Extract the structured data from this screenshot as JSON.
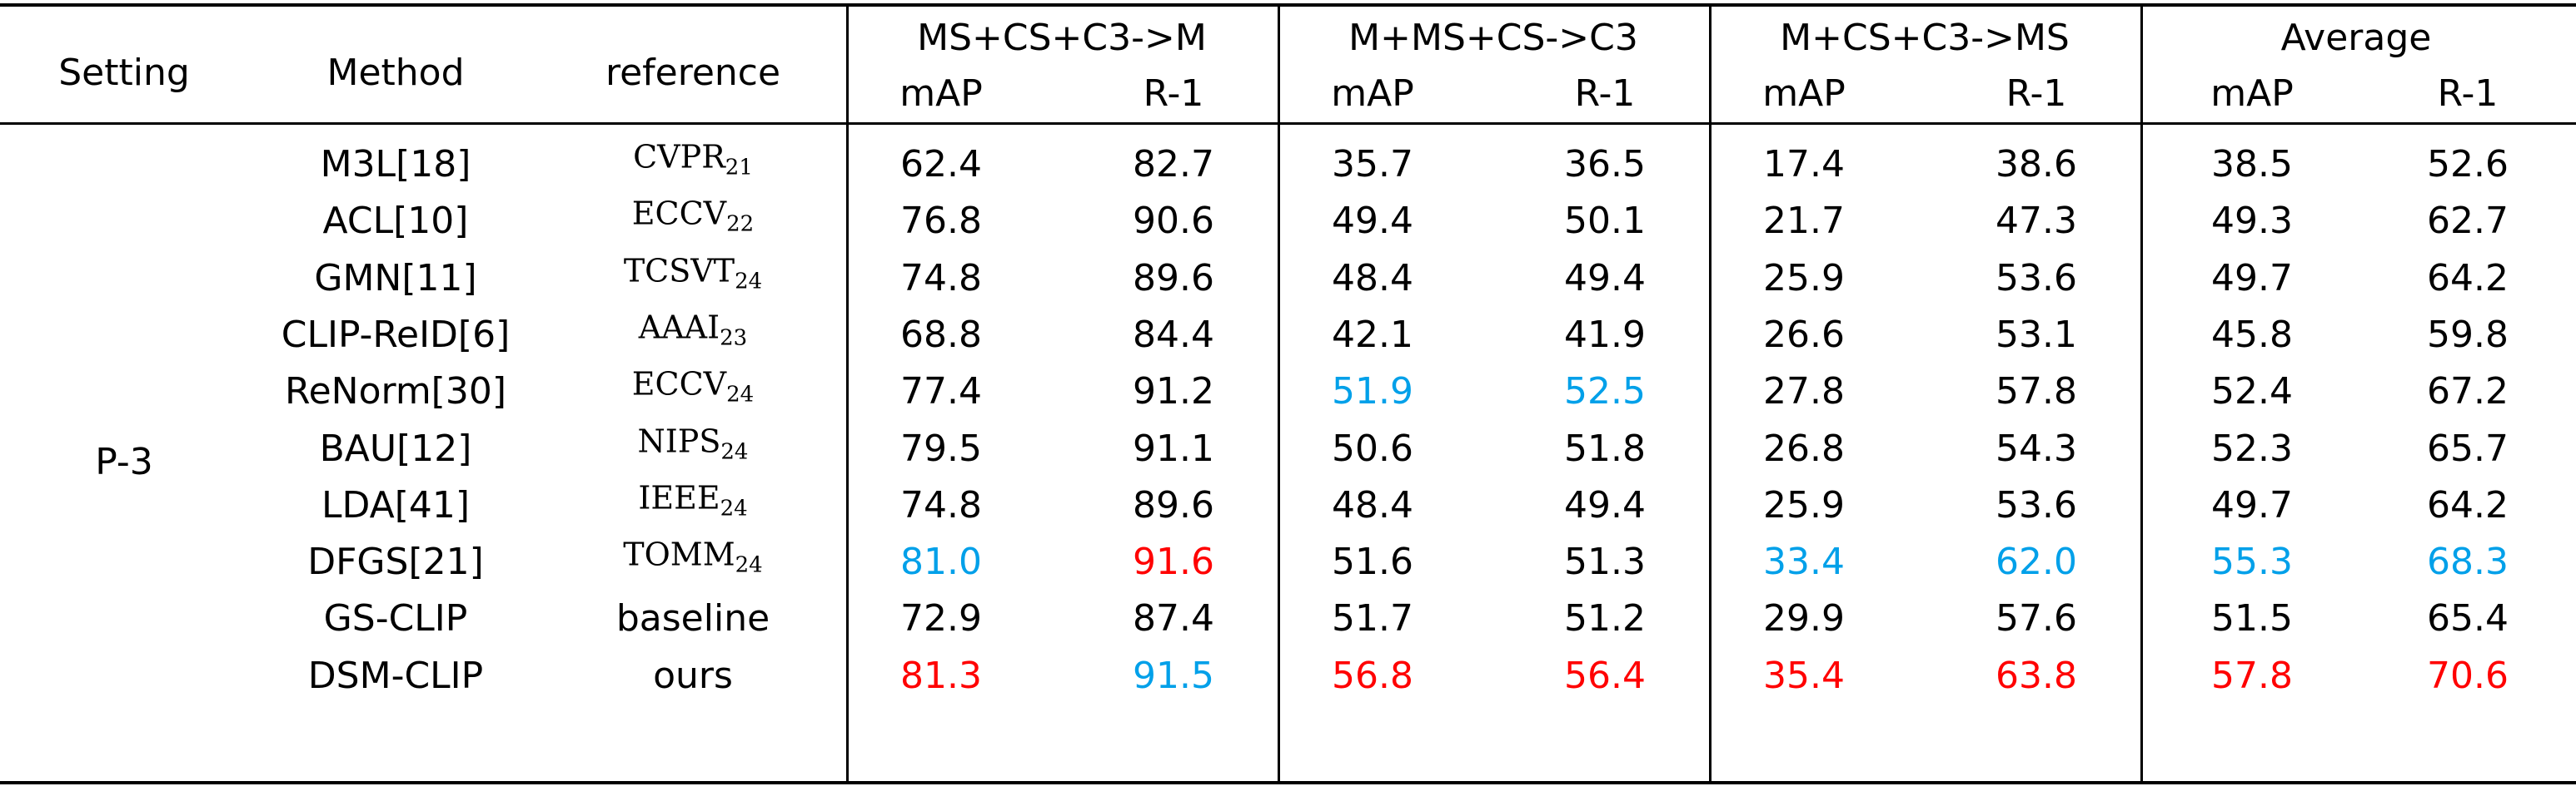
{
  "table": {
    "headers": {
      "setting": "Setting",
      "method": "Method",
      "reference": "reference",
      "groups": [
        "MS+CS+C3->M",
        "M+MS+CS->C3",
        "M+CS+C3->MS",
        "Average"
      ],
      "sub": [
        "mAP",
        "R-1",
        "mAP",
        "R-1",
        "mAP",
        "R-1",
        "mAP",
        "R-1"
      ]
    },
    "setting_value": "P-3",
    "rows": [
      {
        "method": "M3L[18]",
        "ref": "CVPR",
        "ref_sub": "21",
        "values": [
          "62.4",
          "82.7",
          "35.7",
          "36.5",
          "17.4",
          "38.6",
          "38.5",
          "52.6"
        ],
        "colors": [
          "",
          "",
          "",
          "",
          "",
          "",
          "",
          ""
        ]
      },
      {
        "method": "ACL[10]",
        "ref": "ECCV",
        "ref_sub": "22",
        "values": [
          "76.8",
          "90.6",
          "49.4",
          "50.1",
          "21.7",
          "47.3",
          "49.3",
          "62.7"
        ],
        "colors": [
          "",
          "",
          "",
          "",
          "",
          "",
          "",
          ""
        ]
      },
      {
        "method": "GMN[11]",
        "ref": "TCSVT",
        "ref_sub": "24",
        "values": [
          "74.8",
          "89.6",
          "48.4",
          "49.4",
          "25.9",
          "53.6",
          "49.7",
          "64.2"
        ],
        "colors": [
          "",
          "",
          "",
          "",
          "",
          "",
          "",
          ""
        ]
      },
      {
        "method": "CLIP-ReID[6]",
        "ref": "AAAI",
        "ref_sub": "23",
        "values": [
          "68.8",
          "84.4",
          "42.1",
          "41.9",
          "26.6",
          "53.1",
          "45.8",
          "59.8"
        ],
        "colors": [
          "",
          "",
          "",
          "",
          "",
          "",
          "",
          ""
        ]
      },
      {
        "method": "ReNorm[30]",
        "ref": "ECCV",
        "ref_sub": "24",
        "values": [
          "77.4",
          "91.2",
          "51.9",
          "52.5",
          "27.8",
          "57.8",
          "52.4",
          "67.2"
        ],
        "colors": [
          "",
          "",
          "blue",
          "blue",
          "",
          "",
          "",
          ""
        ]
      },
      {
        "method": "BAU[12]",
        "ref": "NIPS",
        "ref_sub": "24",
        "values": [
          "79.5",
          "91.1",
          "50.6",
          "51.8",
          "26.8",
          "54.3",
          "52.3",
          "65.7"
        ],
        "colors": [
          "",
          "",
          "",
          "",
          "",
          "",
          "",
          ""
        ]
      },
      {
        "method": "LDA[41]",
        "ref": "IEEE",
        "ref_sub": "24",
        "values": [
          "74.8",
          "89.6",
          "48.4",
          "49.4",
          "25.9",
          "53.6",
          "49.7",
          "64.2"
        ],
        "colors": [
          "",
          "",
          "",
          "",
          "",
          "",
          "",
          ""
        ]
      },
      {
        "method": "DFGS[21]",
        "ref": "TOMM",
        "ref_sub": "24",
        "values": [
          "81.0",
          "91.6",
          "51.6",
          "51.3",
          "33.4",
          "62.0",
          "55.3",
          "68.3"
        ],
        "colors": [
          "blue",
          "red",
          "",
          "",
          "blue",
          "blue",
          "blue",
          "blue"
        ]
      },
      {
        "method": "GS-CLIP",
        "ref": "baseline",
        "ref_sub": "",
        "values": [
          "72.9",
          "87.4",
          "51.7",
          "51.2",
          "29.9",
          "57.6",
          "51.5",
          "65.4"
        ],
        "colors": [
          "",
          "",
          "",
          "",
          "",
          "",
          "",
          ""
        ]
      },
      {
        "method": "DSM-CLIP",
        "ref": "ours",
        "ref_sub": "",
        "values": [
          "81.3",
          "91.5",
          "56.8",
          "56.4",
          "35.4",
          "63.8",
          "57.8",
          "70.6"
        ],
        "colors": [
          "red",
          "blue",
          "red",
          "red",
          "red",
          "red",
          "red",
          "red"
        ]
      }
    ]
  },
  "colors": {
    "red": "#ff0000",
    "blue": "#00a0e9",
    "rule": "#000000"
  }
}
